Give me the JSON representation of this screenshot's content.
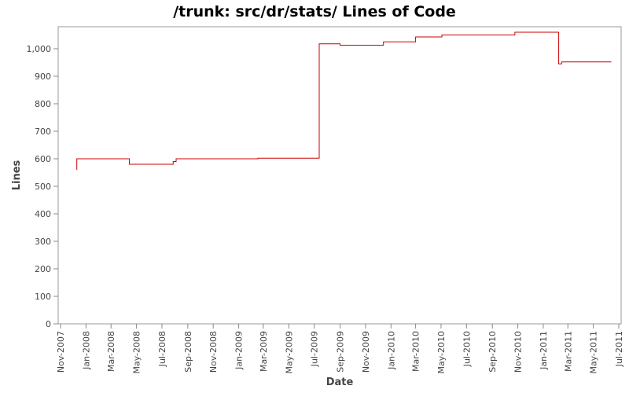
{
  "chart_data": {
    "type": "line",
    "title": "/trunk: src/dr/stats/ Lines of Code",
    "xlabel": "Date",
    "ylabel": "Lines",
    "xlim": [
      "2007-11-01",
      "2011-07-01"
    ],
    "ylim": [
      0,
      1080
    ],
    "x_ticks": [
      "Nov-2007",
      "Jan-2008",
      "Mar-2008",
      "May-2008",
      "Jul-2008",
      "Sep-2008",
      "Nov-2008",
      "Jan-2009",
      "Mar-2009",
      "May-2009",
      "Jul-2009",
      "Sep-2009",
      "Nov-2009",
      "Jan-2010",
      "Mar-2010",
      "May-2010",
      "Jul-2010",
      "Sep-2010",
      "Nov-2010",
      "Jan-2011",
      "Mar-2011",
      "May-2011",
      "Jul-2011"
    ],
    "y_ticks": [
      0,
      100,
      200,
      300,
      400,
      500,
      600,
      700,
      800,
      900,
      1000
    ],
    "y_tick_labels": [
      "0",
      "100",
      "200",
      "300",
      "400",
      "500",
      "600",
      "700",
      "800",
      "900",
      "1,000"
    ],
    "line_color": "#cc0000",
    "step": true,
    "series": [
      {
        "points": [
          {
            "x": "2007-12-10",
            "y": 560
          },
          {
            "x": "2007-12-10",
            "y": 600
          },
          {
            "x": "2008-04-14",
            "y": 600
          },
          {
            "x": "2008-04-14",
            "y": 580
          },
          {
            "x": "2008-07-28",
            "y": 580
          },
          {
            "x": "2008-07-28",
            "y": 590
          },
          {
            "x": "2008-08-04",
            "y": 590
          },
          {
            "x": "2008-08-04",
            "y": 600
          },
          {
            "x": "2009-02-16",
            "y": 600
          },
          {
            "x": "2009-02-16",
            "y": 602
          },
          {
            "x": "2009-07-13",
            "y": 602
          },
          {
            "x": "2009-07-13",
            "y": 1018
          },
          {
            "x": "2009-09-01",
            "y": 1018
          },
          {
            "x": "2009-09-01",
            "y": 1013
          },
          {
            "x": "2009-12-14",
            "y": 1013
          },
          {
            "x": "2009-12-14",
            "y": 1025
          },
          {
            "x": "2010-03-01",
            "y": 1025
          },
          {
            "x": "2010-03-01",
            "y": 1043
          },
          {
            "x": "2010-05-03",
            "y": 1043
          },
          {
            "x": "2010-05-03",
            "y": 1050
          },
          {
            "x": "2010-10-25",
            "y": 1050
          },
          {
            "x": "2010-10-25",
            "y": 1060
          },
          {
            "x": "2011-02-07",
            "y": 1060
          },
          {
            "x": "2011-02-07",
            "y": 945
          },
          {
            "x": "2011-02-14",
            "y": 945
          },
          {
            "x": "2011-02-14",
            "y": 952
          },
          {
            "x": "2011-06-13",
            "y": 952
          }
        ]
      }
    ]
  }
}
